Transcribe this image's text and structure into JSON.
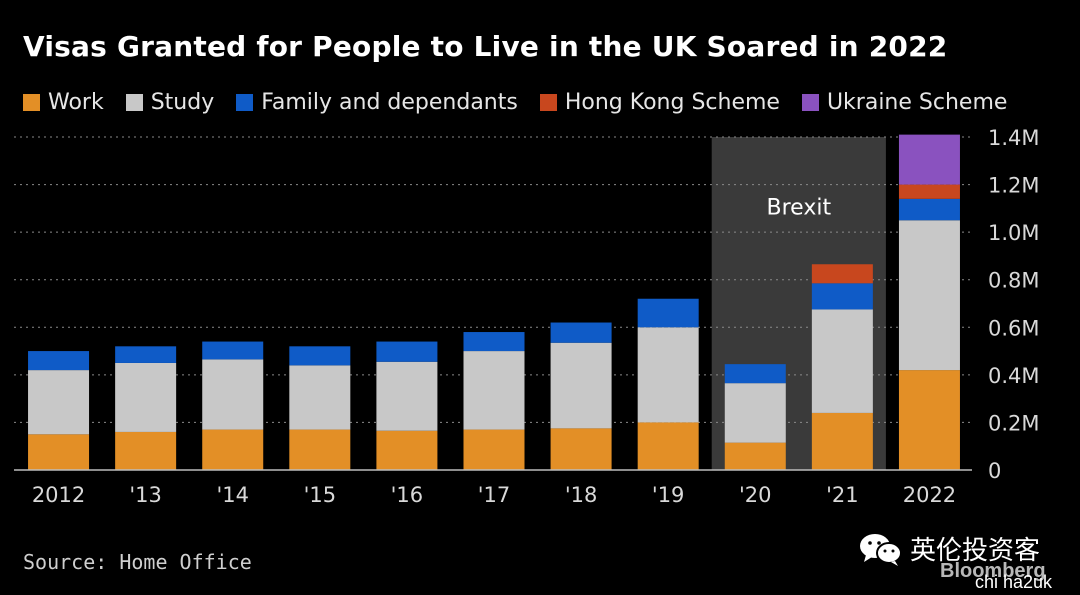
{
  "title": "Visas Granted for People to Live in the UK Soared in 2022",
  "source": "Source: Home Office",
  "watermark": {
    "wechat_name": "英伦投资客",
    "bloomberg": "Bloomberg",
    "handle": "chi ha2uk",
    "icon": "wechat-icon"
  },
  "legend": [
    {
      "name": "Work",
      "color": "#e38f26"
    },
    {
      "name": "Study",
      "color": "#c8c8c8"
    },
    {
      "name": "Family and dependants",
      "color": "#0f5bc7"
    },
    {
      "name": "Hong Kong Scheme",
      "color": "#c8471e"
    },
    {
      "name": "Ukraine Scheme",
      "color": "#8a52bf"
    }
  ],
  "chart_data": {
    "type": "bar",
    "stacked": true,
    "categories": [
      "2012",
      "'13",
      "'14",
      "'15",
      "'16",
      "'17",
      "'18",
      "'19",
      "'20",
      "'21",
      "2022"
    ],
    "series": [
      {
        "name": "Work",
        "color": "#e38f26",
        "values": [
          0.15,
          0.16,
          0.17,
          0.17,
          0.165,
          0.17,
          0.175,
          0.2,
          0.115,
          0.24,
          0.42
        ]
      },
      {
        "name": "Study",
        "color": "#c8c8c8",
        "values": [
          0.27,
          0.29,
          0.295,
          0.27,
          0.29,
          0.33,
          0.36,
          0.4,
          0.25,
          0.435,
          0.63
        ]
      },
      {
        "name": "Family and dependants",
        "color": "#0f5bc7",
        "values": [
          0.08,
          0.07,
          0.075,
          0.08,
          0.085,
          0.08,
          0.085,
          0.12,
          0.08,
          0.11,
          0.09
        ]
      },
      {
        "name": "Hong Kong Scheme",
        "color": "#c8471e",
        "values": [
          0,
          0,
          0,
          0,
          0,
          0,
          0,
          0,
          0,
          0.08,
          0.06
        ]
      },
      {
        "name": "Ukraine Scheme",
        "color": "#8a52bf",
        "values": [
          0,
          0,
          0,
          0,
          0,
          0,
          0,
          0,
          0,
          0,
          0.21
        ]
      }
    ],
    "yticks": [
      {
        "value": 0,
        "label": "0"
      },
      {
        "value": 0.2,
        "label": "0.2M"
      },
      {
        "value": 0.4,
        "label": "0.4M"
      },
      {
        "value": 0.6,
        "label": "0.6M"
      },
      {
        "value": 0.8,
        "label": "0.8M"
      },
      {
        "value": 1.0,
        "label": "1.0M"
      },
      {
        "value": 1.2,
        "label": "1.2M"
      },
      {
        "value": 1.4,
        "label": "1.4M"
      }
    ],
    "ylim": [
      0,
      1.4
    ],
    "yunit": "M",
    "grid": true,
    "legend_position": "top",
    "annotation": {
      "label": "Brexit",
      "from_category": "'20",
      "to_category": "2022",
      "shade_color": "#3a3a3a"
    }
  }
}
